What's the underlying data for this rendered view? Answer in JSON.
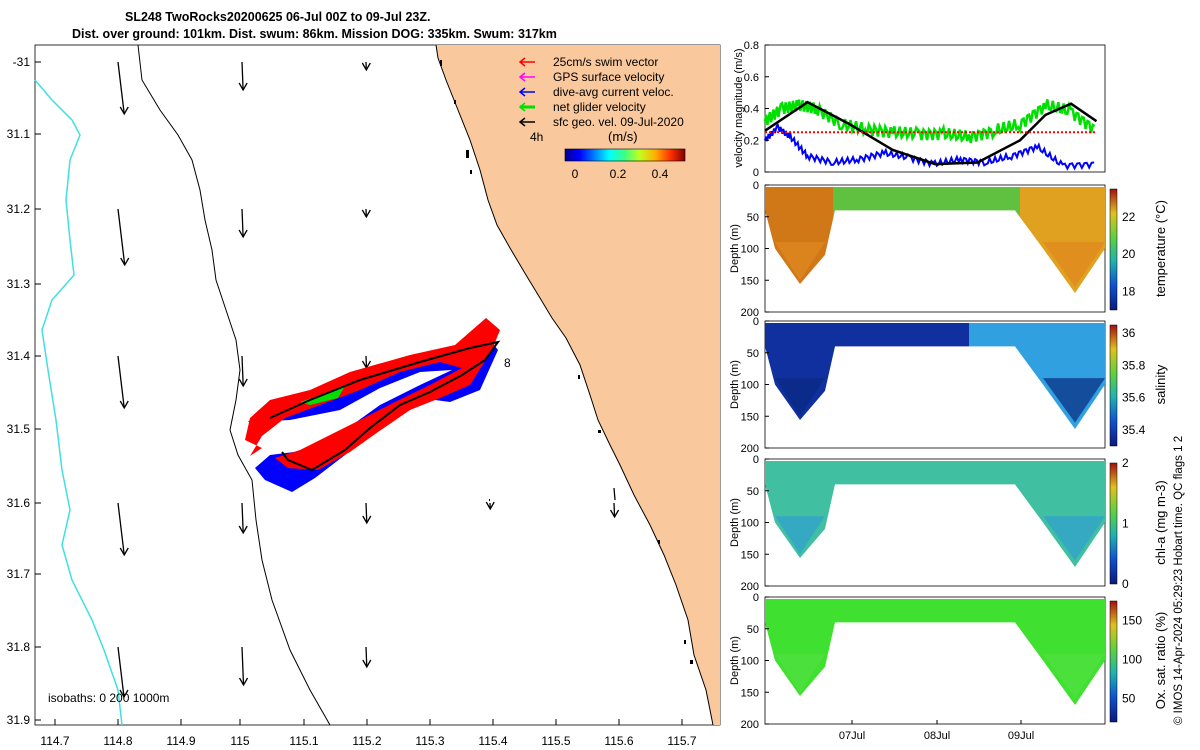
{
  "header": {
    "line1": "SL248 TwoRocks20200625 06-Jul 00Z to 09-Jul 23Z.",
    "line2": "Dist. over ground: 101km. Dist. swum: 86km. Mission DOG: 335km. Swum: 317km"
  },
  "colors": {
    "land": "#f9c89c",
    "isobath": "#40e0e0",
    "swim": "#ff0000",
    "gps": "#ff00ff",
    "current": "#0000ff",
    "net": "#00e000",
    "geo": "#000000"
  },
  "map": {
    "lon_ticks": [
      "114.7",
      "114.8",
      "114.9",
      "115",
      "115.1",
      "115.2",
      "115.3",
      "115.4",
      "115.5",
      "115.6",
      "115.7"
    ],
    "lat_ticks": [
      "-31",
      "31.1",
      "31.2",
      "31.3",
      "31.4",
      "31.5",
      "31.6",
      "31.7",
      "31.8",
      "31.9"
    ],
    "legend": [
      {
        "label": "25cm/s swim vector",
        "color": "#ff0000"
      },
      {
        "label": "GPS surface velocity",
        "color": "#ff00ff"
      },
      {
        "label": "dive-avg current veloc.",
        "color": "#0000ff"
      },
      {
        "label": "net glider velocity",
        "color": "#00e000"
      },
      {
        "label": "sfc geo. vel. 09-Jul-2020",
        "color": "#000000"
      }
    ],
    "time_label": "4h",
    "colorbar": {
      "title": "(m/s)",
      "ticks": [
        "0",
        "0.2",
        "0.4"
      ]
    },
    "track_label": "8",
    "isobaths_label": "isobaths: 0  200  1000m"
  },
  "chart_data": [
    {
      "type": "line",
      "ylabel": "velocity magnitude (m/s)",
      "ylim": [
        0,
        0.8
      ],
      "y_ticks": [
        "0",
        "0.2",
        "0.4",
        "0.6",
        "0.8"
      ],
      "x_ticks": [
        "07Jul",
        "08Jul",
        "09Jul"
      ],
      "x_domain_days": [
        "06-Jul 00Z",
        "09-Jul 23Z"
      ],
      "series": [
        {
          "color": "#00e000",
          "x": [
            0,
            0.2,
            0.4,
            0.6,
            0.9,
            1.2,
            1.5,
            1.8,
            2.1,
            2.4,
            2.7,
            3.0,
            3.3,
            3.6,
            3.9
          ],
          "values": [
            0.32,
            0.4,
            0.42,
            0.4,
            0.3,
            0.27,
            0.25,
            0.24,
            0.24,
            0.22,
            0.26,
            0.3,
            0.42,
            0.38,
            0.26
          ]
        },
        {
          "color": "#0000ff",
          "x": [
            0,
            0.15,
            0.3,
            0.5,
            0.8,
            1.1,
            1.4,
            1.7,
            2.0,
            2.3,
            2.6,
            2.9,
            3.2,
            3.5,
            3.9
          ],
          "values": [
            0.2,
            0.28,
            0.22,
            0.1,
            0.06,
            0.08,
            0.12,
            0.09,
            0.05,
            0.08,
            0.06,
            0.1,
            0.16,
            0.04,
            0.05
          ]
        },
        {
          "color": "#000000",
          "x": [
            0,
            0.5,
            1.0,
            1.5,
            2.0,
            2.5,
            3.0,
            3.3,
            3.6,
            3.9
          ],
          "values": [
            0.26,
            0.44,
            0.3,
            0.14,
            0.05,
            0.06,
            0.2,
            0.36,
            0.43,
            0.32
          ]
        },
        {
          "color": "#ff0000",
          "x": [
            0,
            3.9
          ],
          "values": [
            0.25,
            0.25
          ]
        }
      ]
    },
    {
      "type": "heatmap",
      "ylabel": "Depth (m)",
      "clabel": "temperature (°C)",
      "ylim": [
        0,
        200
      ],
      "y_ticks": [
        "0",
        "50",
        "100",
        "150",
        "200"
      ],
      "c_ticks": [
        "18",
        "20",
        "22"
      ],
      "crange": [
        17,
        23.5
      ]
    },
    {
      "type": "heatmap",
      "ylabel": "Depth (m)",
      "clabel": "salinity",
      "ylim": [
        0,
        200
      ],
      "y_ticks": [
        "0",
        "50",
        "100",
        "150",
        "200"
      ],
      "c_ticks": [
        "35.4",
        "35.6",
        "35.8",
        "36"
      ],
      "crange": [
        35.3,
        36.05
      ]
    },
    {
      "type": "heatmap",
      "ylabel": "Depth (m)",
      "clabel": "chl-a (mg m-3)",
      "ylim": [
        0,
        200
      ],
      "y_ticks": [
        "0",
        "50",
        "100",
        "150",
        "200"
      ],
      "c_ticks": [
        "0",
        "1",
        "2"
      ],
      "crange": [
        0,
        2
      ]
    },
    {
      "type": "heatmap",
      "ylabel": "Depth (m)",
      "clabel": "Ox. sat. ratio (%)",
      "ylim": [
        0,
        200
      ],
      "y_ticks": [
        "0",
        "50",
        "100",
        "150",
        "200"
      ],
      "c_ticks": [
        "50",
        "100",
        "150"
      ],
      "crange": [
        20,
        175
      ]
    }
  ],
  "footer": "© IMOS 14-Apr-2024 05:29:23 Hobart time. QC flags 1  2"
}
